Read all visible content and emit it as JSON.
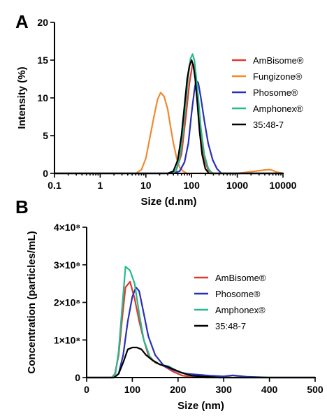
{
  "chart_data": [
    {
      "panel": "A",
      "type": "line",
      "xscale": "log",
      "xlabel": "Size (d.nm)",
      "ylabel": "Intensity (%)",
      "xlim": [
        0.1,
        10000
      ],
      "ylim": [
        0,
        20
      ],
      "xticks": [
        0.1,
        1,
        10,
        100,
        1000,
        10000
      ],
      "xtick_labels": [
        "0.1",
        "1",
        "10",
        "100",
        "1000",
        "10000"
      ],
      "yticks": [
        0,
        5,
        10,
        15,
        20
      ],
      "ytick_labels": [
        "0",
        "5",
        "10",
        "15",
        "20"
      ],
      "legend_position": "right",
      "series": [
        {
          "name": "AmBisome®",
          "color": "#e03a2f",
          "x": [
            0.1,
            30,
            45,
            60,
            75,
            90,
            105,
            115,
            125,
            140,
            160,
            190,
            230,
            300,
            10000
          ],
          "y": [
            0,
            0,
            0.2,
            2.5,
            7.5,
            12,
            14.5,
            14.2,
            12.5,
            9,
            5,
            2,
            0.4,
            0,
            0
          ]
        },
        {
          "name": "Fungizone®",
          "color": "#f08a2e",
          "x": [
            0.1,
            6,
            8,
            10,
            12,
            15,
            18,
            21,
            25,
            30,
            35,
            40,
            48,
            55,
            65,
            80,
            100,
            1000,
            2500,
            4000,
            5000,
            6000,
            7000,
            10000
          ],
          "y": [
            0,
            0,
            0.5,
            2,
            4.5,
            7.5,
            9.8,
            10.7,
            10.2,
            8.5,
            6,
            4,
            1.8,
            0.8,
            0.3,
            0,
            0,
            0,
            0.3,
            0.45,
            0.5,
            0.4,
            0.2,
            0
          ]
        },
        {
          "name": "Phosome®",
          "color": "#2a2fb5",
          "x": [
            0.1,
            40,
            55,
            70,
            85,
            100,
            115,
            125,
            140,
            160,
            190,
            230,
            290,
            360,
            450,
            10000
          ],
          "y": [
            0,
            0,
            0.3,
            1.5,
            4,
            8,
            11,
            12.3,
            12,
            10,
            7,
            4,
            1.8,
            0.6,
            0,
            0
          ]
        },
        {
          "name": "Amphonex®",
          "color": "#27b890",
          "x": [
            0.1,
            35,
            45,
            55,
            65,
            75,
            85,
            95,
            105,
            115,
            125,
            140,
            160,
            190,
            230,
            280,
            10000
          ],
          "y": [
            0,
            0,
            0.3,
            2,
            5.5,
            9.5,
            13,
            15.2,
            15.8,
            15,
            13,
            10,
            6,
            2.5,
            0.7,
            0,
            0
          ]
        },
        {
          "name": "35:48-7",
          "color": "#000000",
          "x": [
            0.1,
            30,
            40,
            50,
            60,
            70,
            80,
            90,
            100,
            110,
            120,
            135,
            150,
            170,
            200,
            240,
            10000
          ],
          "y": [
            0,
            0,
            0.3,
            1.8,
            5,
            9,
            12.5,
            14.3,
            15,
            14.2,
            12.5,
            9,
            5.5,
            2.5,
            0.6,
            0,
            0
          ]
        }
      ]
    },
    {
      "panel": "B",
      "type": "line",
      "xlabel": "Size (nm)",
      "ylabel": "Concentration (particles/mL)",
      "xlim": [
        0,
        500
      ],
      "ylim": [
        0,
        400000000
      ],
      "xticks": [
        0,
        100,
        200,
        300,
        400,
        500
      ],
      "xtick_labels": [
        "0",
        "100",
        "200",
        "300",
        "400",
        "500"
      ],
      "yticks": [
        0,
        100000000,
        200000000,
        300000000,
        400000000
      ],
      "ytick_labels": [
        "0",
        "1×10⁸",
        "2×10⁸",
        "3×10⁸",
        "4×10⁸"
      ],
      "legend_position": "right",
      "series": [
        {
          "name": "AmBisome®",
          "color": "#e03a2f",
          "x": [
            0,
            55,
            62,
            70,
            78,
            85,
            95,
            105,
            115,
            125,
            135,
            150,
            170,
            190,
            210,
            230,
            260,
            500
          ],
          "y": [
            0,
            0,
            10000000,
            60000000,
            160000000,
            240000000,
            255000000,
            210000000,
            150000000,
            100000000,
            60000000,
            40000000,
            30000000,
            15000000,
            5000000,
            2000000,
            0,
            0
          ]
        },
        {
          "name": "Phosome®",
          "color": "#2a2fb5",
          "x": [
            0,
            60,
            70,
            80,
            90,
            100,
            108,
            115,
            125,
            135,
            150,
            170,
            200,
            220,
            240,
            270,
            300,
            320,
            350,
            380,
            400,
            500
          ],
          "y": [
            0,
            0,
            10000000,
            60000000,
            150000000,
            215000000,
            240000000,
            230000000,
            170000000,
            110000000,
            60000000,
            30000000,
            15000000,
            10000000,
            8000000,
            5000000,
            3000000,
            6000000,
            2000000,
            1000000,
            0,
            0
          ]
        },
        {
          "name": "Amphonex®",
          "color": "#27b890",
          "x": [
            0,
            55,
            63,
            70,
            78,
            85,
            95,
            105,
            115,
            125,
            140,
            160,
            180,
            200,
            230,
            260,
            500
          ],
          "y": [
            0,
            0,
            10000000,
            70000000,
            190000000,
            295000000,
            285000000,
            250000000,
            170000000,
            100000000,
            50000000,
            35000000,
            30000000,
            15000000,
            5000000,
            0,
            0
          ]
        },
        {
          "name": "35:48-7",
          "color": "#000000",
          "x": [
            0,
            60,
            70,
            80,
            90,
            100,
            110,
            120,
            130,
            145,
            160,
            175,
            190,
            210,
            230,
            260,
            290,
            500
          ],
          "y": [
            0,
            0,
            10000000,
            40000000,
            75000000,
            80000000,
            80000000,
            75000000,
            60000000,
            45000000,
            35000000,
            30000000,
            22000000,
            12000000,
            5000000,
            2000000,
            0,
            0
          ]
        }
      ]
    }
  ]
}
